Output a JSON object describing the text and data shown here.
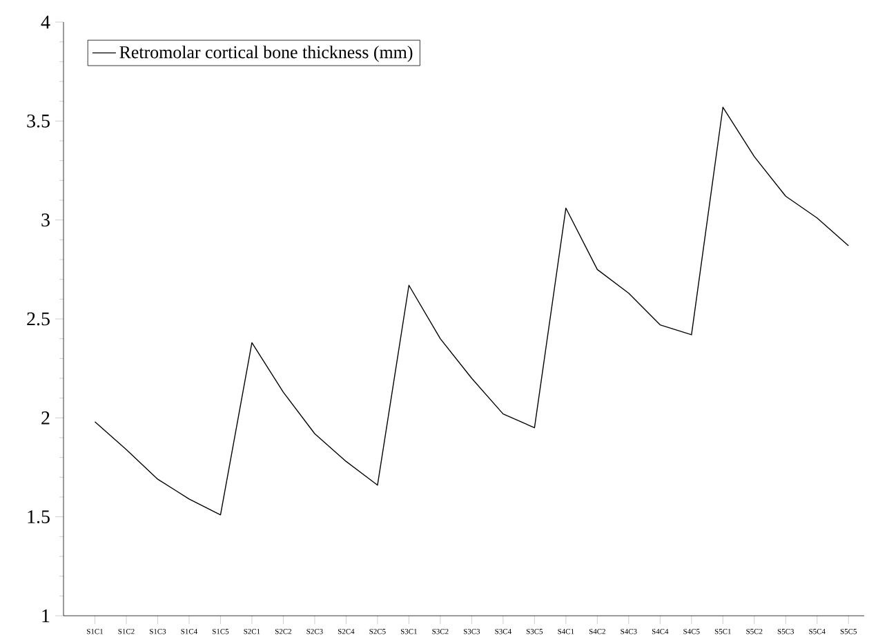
{
  "chart_data": {
    "type": "line",
    "categories": [
      "S1C1",
      "S1C2",
      "S1C3",
      "S1C4",
      "S1C5",
      "S2C1",
      "S2C2",
      "S2C3",
      "S2C4",
      "S2C5",
      "S3C1",
      "S3C2",
      "S3C3",
      "S3C4",
      "S3C5",
      "S4C1",
      "S4C2",
      "S4C3",
      "S4C4",
      "S4C5",
      "S5C1",
      "S5C2",
      "S5C3",
      "S5C4",
      "S5C5"
    ],
    "series": [
      {
        "name": "Retromolar cortical bone thickness (mm)",
        "color": "#000000",
        "values": [
          1.98,
          1.84,
          1.69,
          1.59,
          1.51,
          2.38,
          2.13,
          1.92,
          1.78,
          1.66,
          2.67,
          2.4,
          2.2,
          2.02,
          1.95,
          3.06,
          2.75,
          2.63,
          2.47,
          2.42,
          3.57,
          3.32,
          3.12,
          3.01,
          2.87
        ]
      }
    ],
    "ylim": [
      1,
      4
    ],
    "yticks": [
      1,
      1.5,
      2,
      2.5,
      3,
      3.5,
      4
    ],
    "legend": "top left",
    "grid": false
  }
}
